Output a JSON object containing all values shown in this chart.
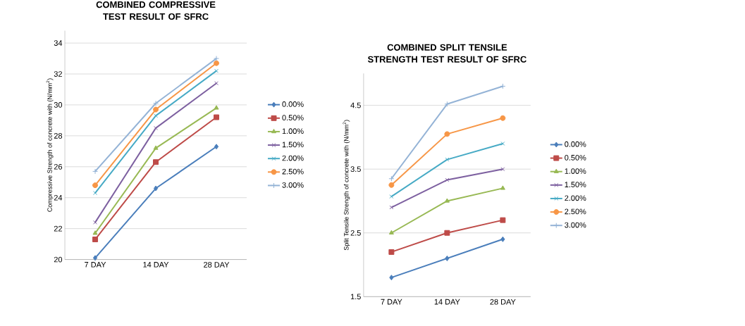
{
  "chart_data": [
    {
      "type": "line",
      "title": "COMBINED COMPRESSIVE TEST RESULT OF SFRC",
      "ylabel": "Compressive Strength of concrete with (N/mm$^{2}$)",
      "categories": [
        "7 DAY",
        "14 DAY",
        "28 DAY"
      ],
      "ylim": [
        20,
        34.8
      ],
      "yticks": [
        20,
        22,
        24,
        26,
        28,
        30,
        32,
        34
      ],
      "grid": "y",
      "legend": "right",
      "series": [
        {
          "name": "0.00%",
          "color": "#4a7ebb",
          "marker": "diamond",
          "values": [
            20.1,
            24.6,
            27.3
          ]
        },
        {
          "name": "0.50%",
          "color": "#be4b48",
          "marker": "square",
          "values": [
            21.3,
            26.3,
            29.2
          ]
        },
        {
          "name": "1.00%",
          "color": "#98b954",
          "marker": "triangle",
          "values": [
            21.7,
            27.2,
            29.8
          ]
        },
        {
          "name": "1.50%",
          "color": "#7d60a0",
          "marker": "cross",
          "values": [
            22.4,
            28.5,
            31.4
          ]
        },
        {
          "name": "2.00%",
          "color": "#46aac5",
          "marker": "cross",
          "values": [
            24.3,
            29.3,
            32.2
          ]
        },
        {
          "name": "2.50%",
          "color": "#f79646",
          "marker": "circle",
          "values": [
            24.8,
            29.7,
            32.7
          ]
        },
        {
          "name": "3.00%",
          "color": "#94b3d6",
          "marker": "plus",
          "values": [
            25.7,
            30.1,
            33.0
          ]
        }
      ]
    },
    {
      "type": "line",
      "title": "COMBINED SPLIT TENSILE STRENGTH TEST RESULT OF SFRC",
      "ylabel": "Split Tensile Strength of concrete with (N/mm$^{2}$)",
      "categories": [
        "7 DAY",
        "14 DAY",
        "28 DAY"
      ],
      "ylim": [
        1.5,
        5.0
      ],
      "yticks": [
        1.5,
        2.5,
        3.5,
        4.5
      ],
      "grid": "y",
      "legend": "right",
      "series": [
        {
          "name": "0.00%",
          "color": "#4a7ebb",
          "marker": "diamond",
          "values": [
            1.8,
            2.1,
            2.4
          ]
        },
        {
          "name": "0.50%",
          "color": "#be4b48",
          "marker": "square",
          "values": [
            2.2,
            2.5,
            2.7
          ]
        },
        {
          "name": "1.00%",
          "color": "#98b954",
          "marker": "triangle",
          "values": [
            2.5,
            3.0,
            3.2
          ]
        },
        {
          "name": "1.50%",
          "color": "#7d60a0",
          "marker": "cross",
          "values": [
            2.9,
            3.33,
            3.5
          ]
        },
        {
          "name": "2.00%",
          "color": "#46aac5",
          "marker": "cross",
          "values": [
            3.07,
            3.65,
            3.9
          ]
        },
        {
          "name": "2.50%",
          "color": "#f79646",
          "marker": "circle",
          "values": [
            3.25,
            4.05,
            4.3
          ]
        },
        {
          "name": "3.00%",
          "color": "#94b3d6",
          "marker": "plus",
          "values": [
            3.35,
            4.52,
            4.8
          ]
        }
      ]
    }
  ]
}
